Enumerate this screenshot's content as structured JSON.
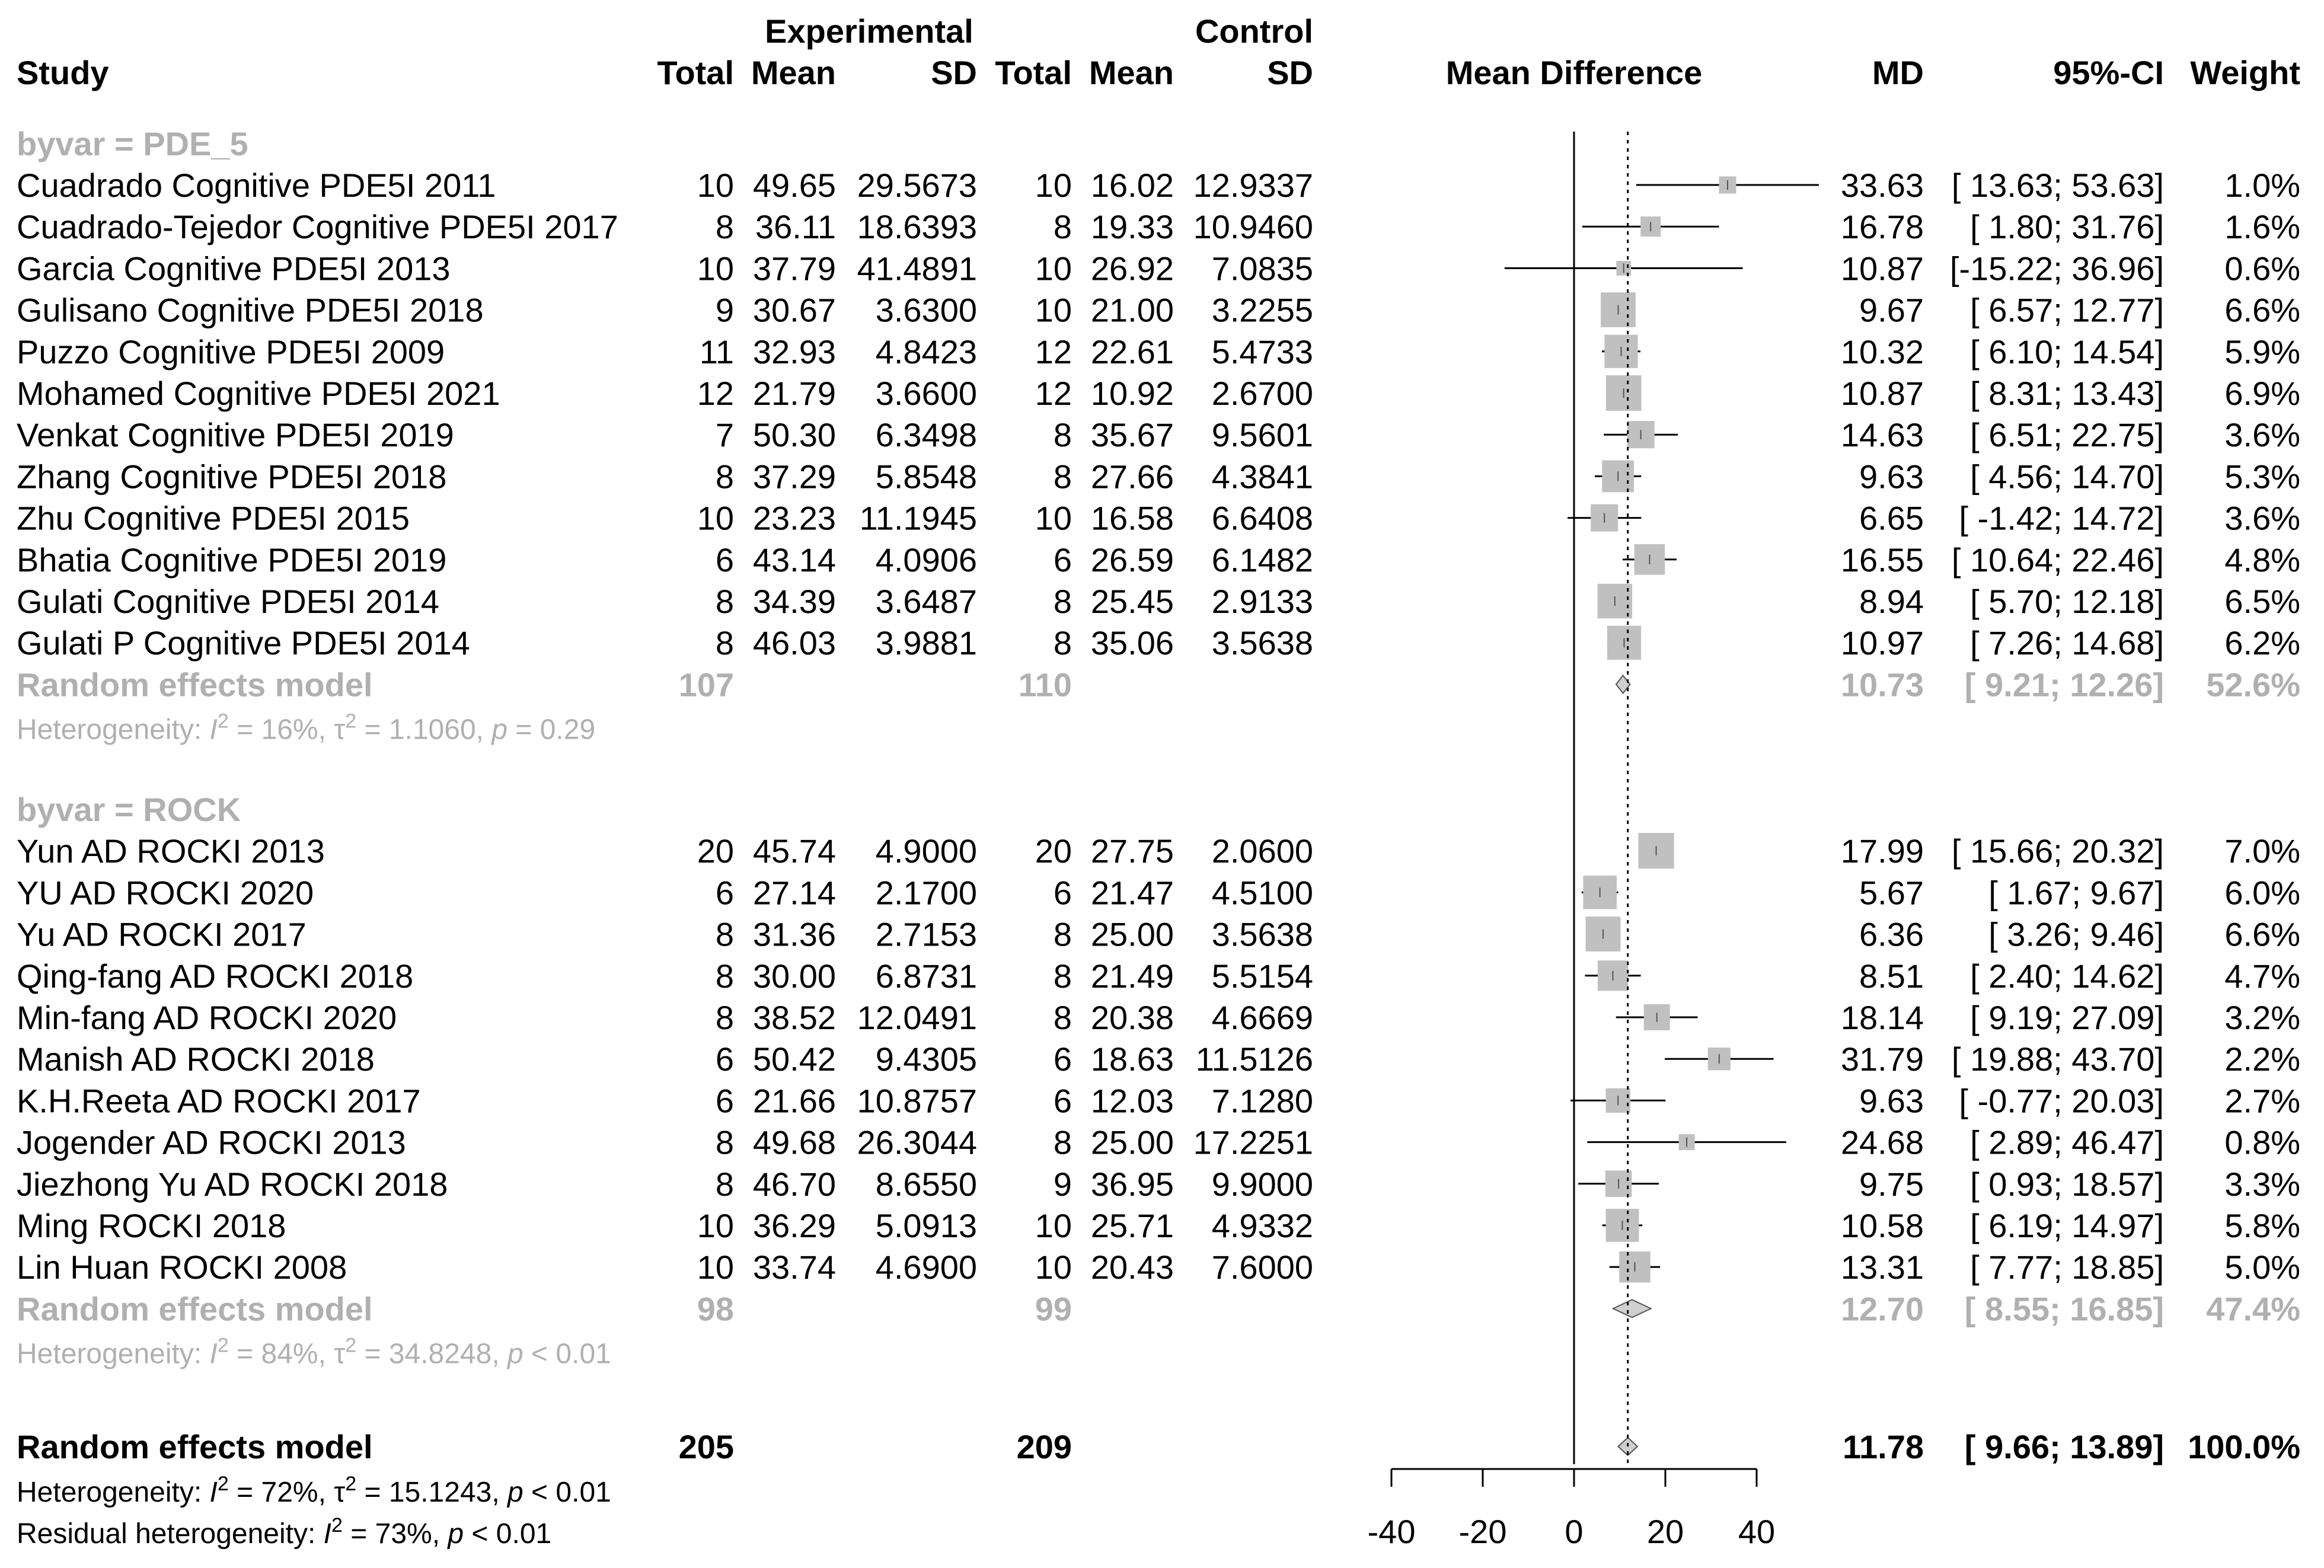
{
  "headers": {
    "experimental": "Experimental",
    "control": "Control",
    "study": "Study",
    "total": "Total",
    "mean": "Mean",
    "sd": "SD",
    "mean_difference": "Mean Difference",
    "md": "MD",
    "ci": "95%-CI",
    "weight": "Weight"
  },
  "footer": {
    "overall_label": "Random effects model",
    "overall_exp_total": "205",
    "overall_ctrl_total": "209",
    "overall_md": "11.78",
    "overall_ci": "[ 9.66; 13.89]",
    "overall_weight": "100.0%",
    "heterogeneity_prefix": "Heterogeneity: ",
    "heterogeneity_rest": " = 72%, τ",
    "heterogeneity_tail": " = 15.1243, ",
    "heterogeneity_p": " < 0.01",
    "residual_prefix": "Residual heterogeneity: ",
    "residual_rest": " = 73%, ",
    "residual_p": " < 0.01"
  },
  "chart_data": {
    "type": "forest",
    "axis": {
      "min": -40,
      "max": 40,
      "ticks": [
        -40,
        -20,
        0,
        20,
        40
      ],
      "xlabel": "Mean Difference",
      "null_line": 0,
      "pooled_line": 11.78
    },
    "groups": [
      {
        "label": "byvar = PDE_5",
        "studies": [
          {
            "study": "Cuadrado Cognitive PDE5I 2011",
            "n_e": "10",
            "mean_e": "49.65",
            "sd_e": "29.5673",
            "n_c": "10",
            "mean_c": "16.02",
            "sd_c": "12.9337",
            "md": 33.63,
            "lower": 13.63,
            "upper": 53.63,
            "md_text": "33.63",
            "ci_text": "[ 13.63; 53.63]",
            "weight_text": "1.0%",
            "weight": 1.0
          },
          {
            "study": "Cuadrado-Tejedor Cognitive PDE5I 2017",
            "n_e": "8",
            "mean_e": "36.11",
            "sd_e": "18.6393",
            "n_c": "8",
            "mean_c": "19.33",
            "sd_c": "10.9460",
            "md": 16.78,
            "lower": 1.8,
            "upper": 31.76,
            "md_text": "16.78",
            "ci_text": "[ 1.80; 31.76]",
            "weight_text": "1.6%",
            "weight": 1.6
          },
          {
            "study": "Garcia Cognitive PDE5I 2013",
            "n_e": "10",
            "mean_e": "37.79",
            "sd_e": "41.4891",
            "n_c": "10",
            "mean_c": "26.92",
            "sd_c": "7.0835",
            "md": 10.87,
            "lower": -15.22,
            "upper": 36.96,
            "md_text": "10.87",
            "ci_text": "[-15.22; 36.96]",
            "weight_text": "0.6%",
            "weight": 0.6
          },
          {
            "study": "Gulisano Cognitive PDE5I 2018",
            "n_e": "9",
            "mean_e": "30.67",
            "sd_e": "3.6300",
            "n_c": "10",
            "mean_c": "21.00",
            "sd_c": "3.2255",
            "md": 9.67,
            "lower": 6.57,
            "upper": 12.77,
            "md_text": "9.67",
            "ci_text": "[ 6.57; 12.77]",
            "weight_text": "6.6%",
            "weight": 6.6
          },
          {
            "study": "Puzzo Cognitive PDE5I 2009",
            "n_e": "11",
            "mean_e": "32.93",
            "sd_e": "4.8423",
            "n_c": "12",
            "mean_c": "22.61",
            "sd_c": "5.4733",
            "md": 10.32,
            "lower": 6.1,
            "upper": 14.54,
            "md_text": "10.32",
            "ci_text": "[ 6.10; 14.54]",
            "weight_text": "5.9%",
            "weight": 5.9
          },
          {
            "study": "Mohamed Cognitive PDE5I 2021",
            "n_e": "12",
            "mean_e": "21.79",
            "sd_e": "3.6600",
            "n_c": "12",
            "mean_c": "10.92",
            "sd_c": "2.6700",
            "md": 10.87,
            "lower": 8.31,
            "upper": 13.43,
            "md_text": "10.87",
            "ci_text": "[ 8.31; 13.43]",
            "weight_text": "6.9%",
            "weight": 6.9
          },
          {
            "study": "Venkat Cognitive PDE5I 2019",
            "n_e": "7",
            "mean_e": "50.30",
            "sd_e": "6.3498",
            "n_c": "8",
            "mean_c": "35.67",
            "sd_c": "9.5601",
            "md": 14.63,
            "lower": 6.51,
            "upper": 22.75,
            "md_text": "14.63",
            "ci_text": "[ 6.51; 22.75]",
            "weight_text": "3.6%",
            "weight": 3.6
          },
          {
            "study": "Zhang Cognitive PDE5I 2018",
            "n_e": "8",
            "mean_e": "37.29",
            "sd_e": "5.8548",
            "n_c": "8",
            "mean_c": "27.66",
            "sd_c": "4.3841",
            "md": 9.63,
            "lower": 4.56,
            "upper": 14.7,
            "md_text": "9.63",
            "ci_text": "[ 4.56; 14.70]",
            "weight_text": "5.3%",
            "weight": 5.3
          },
          {
            "study": "Zhu Cognitive PDE5I 2015",
            "n_e": "10",
            "mean_e": "23.23",
            "sd_e": "11.1945",
            "n_c": "10",
            "mean_c": "16.58",
            "sd_c": "6.6408",
            "md": 6.65,
            "lower": -1.42,
            "upper": 14.72,
            "md_text": "6.65",
            "ci_text": "[ -1.42; 14.72]",
            "weight_text": "3.6%",
            "weight": 3.6
          },
          {
            "study": "Bhatia Cognitive PDE5I 2019",
            "n_e": "6",
            "mean_e": "43.14",
            "sd_e": "4.0906",
            "n_c": "6",
            "mean_c": "26.59",
            "sd_c": "6.1482",
            "md": 16.55,
            "lower": 10.64,
            "upper": 22.46,
            "md_text": "16.55",
            "ci_text": "[ 10.64; 22.46]",
            "weight_text": "4.8%",
            "weight": 4.8
          },
          {
            "study": "Gulati Cognitive PDE5I 2014",
            "n_e": "8",
            "mean_e": "34.39",
            "sd_e": "3.6487",
            "n_c": "8",
            "mean_c": "25.45",
            "sd_c": "2.9133",
            "md": 8.94,
            "lower": 5.7,
            "upper": 12.18,
            "md_text": "8.94",
            "ci_text": "[ 5.70; 12.18]",
            "weight_text": "6.5%",
            "weight": 6.5
          },
          {
            "study": "Gulati P Cognitive PDE5I 2014",
            "n_e": "8",
            "mean_e": "46.03",
            "sd_e": "3.9881",
            "n_c": "8",
            "mean_c": "35.06",
            "sd_c": "3.5638",
            "md": 10.97,
            "lower": 7.26,
            "upper": 14.68,
            "md_text": "10.97",
            "ci_text": "[ 7.26; 14.68]",
            "weight_text": "6.2%",
            "weight": 6.2
          }
        ],
        "pooled": {
          "label": "Random effects model",
          "n_e": "107",
          "n_c": "110",
          "md": 10.73,
          "lower": 9.21,
          "upper": 12.26,
          "md_text": "10.73",
          "ci_text": "[ 9.21; 12.26]",
          "weight_text": "52.6%"
        },
        "heterogeneity": {
          "prefix": "Heterogeneity: ",
          "i2_rest": " = 16%, τ",
          "tau_rest": " = 1.1060, ",
          "p_rest": " = 0.29"
        }
      },
      {
        "label": "byvar = ROCK",
        "studies": [
          {
            "study": "Yun AD ROCKI 2013",
            "n_e": "20",
            "mean_e": "45.74",
            "sd_e": "4.9000",
            "n_c": "20",
            "mean_c": "27.75",
            "sd_c": "2.0600",
            "md": 17.99,
            "lower": 15.66,
            "upper": 20.32,
            "md_text": "17.99",
            "ci_text": "[ 15.66; 20.32]",
            "weight_text": "7.0%",
            "weight": 7.0
          },
          {
            "study": "YU AD ROCKI 2020",
            "n_e": "6",
            "mean_e": "27.14",
            "sd_e": "2.1700",
            "n_c": "6",
            "mean_c": "21.47",
            "sd_c": "4.5100",
            "md": 5.67,
            "lower": 1.67,
            "upper": 9.67,
            "md_text": "5.67",
            "ci_text": "[ 1.67; 9.67]",
            "weight_text": "6.0%",
            "weight": 6.0
          },
          {
            "study": "Yu AD ROCKI 2017",
            "n_e": "8",
            "mean_e": "31.36",
            "sd_e": "2.7153",
            "n_c": "8",
            "mean_c": "25.00",
            "sd_c": "3.5638",
            "md": 6.36,
            "lower": 3.26,
            "upper": 9.46,
            "md_text": "6.36",
            "ci_text": "[ 3.26; 9.46]",
            "weight_text": "6.6%",
            "weight": 6.6
          },
          {
            "study": "Qing-fang AD ROCKI 2018",
            "n_e": "8",
            "mean_e": "30.00",
            "sd_e": "6.8731",
            "n_c": "8",
            "mean_c": "21.49",
            "sd_c": "5.5154",
            "md": 8.51,
            "lower": 2.4,
            "upper": 14.62,
            "md_text": "8.51",
            "ci_text": "[ 2.40; 14.62]",
            "weight_text": "4.7%",
            "weight": 4.7
          },
          {
            "study": "Min-fang AD ROCKI 2020",
            "n_e": "8",
            "mean_e": "38.52",
            "sd_e": "12.0491",
            "n_c": "8",
            "mean_c": "20.38",
            "sd_c": "4.6669",
            "md": 18.14,
            "lower": 9.19,
            "upper": 27.09,
            "md_text": "18.14",
            "ci_text": "[ 9.19; 27.09]",
            "weight_text": "3.2%",
            "weight": 3.2
          },
          {
            "study": "Manish AD ROCKI 2018",
            "n_e": "6",
            "mean_e": "50.42",
            "sd_e": "9.4305",
            "n_c": "6",
            "mean_c": "18.63",
            "sd_c": "11.5126",
            "md": 31.79,
            "lower": 19.88,
            "upper": 43.7,
            "md_text": "31.79",
            "ci_text": "[ 19.88; 43.70]",
            "weight_text": "2.2%",
            "weight": 2.2
          },
          {
            "study": "K.H.Reeta AD ROCKI 2017",
            "n_e": "6",
            "mean_e": "21.66",
            "sd_e": "10.8757",
            "n_c": "6",
            "mean_c": "12.03",
            "sd_c": "7.1280",
            "md": 9.63,
            "lower": -0.77,
            "upper": 20.03,
            "md_text": "9.63",
            "ci_text": "[ -0.77; 20.03]",
            "weight_text": "2.7%",
            "weight": 2.7
          },
          {
            "study": "Jogender AD ROCKI 2013",
            "n_e": "8",
            "mean_e": "49.68",
            "sd_e": "26.3044",
            "n_c": "8",
            "mean_c": "25.00",
            "sd_c": "17.2251",
            "md": 24.68,
            "lower": 2.89,
            "upper": 46.47,
            "md_text": "24.68",
            "ci_text": "[ 2.89; 46.47]",
            "weight_text": "0.8%",
            "weight": 0.8
          },
          {
            "study": "Jiezhong Yu AD ROCKI 2018",
            "n_e": "8",
            "mean_e": "46.70",
            "sd_e": "8.6550",
            "n_c": "9",
            "mean_c": "36.95",
            "sd_c": "9.9000",
            "md": 9.75,
            "lower": 0.93,
            "upper": 18.57,
            "md_text": "9.75",
            "ci_text": "[ 0.93; 18.57]",
            "weight_text": "3.3%",
            "weight": 3.3
          },
          {
            "study": "Ming ROCKI 2018",
            "n_e": "10",
            "mean_e": "36.29",
            "sd_e": "5.0913",
            "n_c": "10",
            "mean_c": "25.71",
            "sd_c": "4.9332",
            "md": 10.58,
            "lower": 6.19,
            "upper": 14.97,
            "md_text": "10.58",
            "ci_text": "[ 6.19; 14.97]",
            "weight_text": "5.8%",
            "weight": 5.8
          },
          {
            "study": "Lin Huan ROCKI 2008",
            "n_e": "10",
            "mean_e": "33.74",
            "sd_e": "4.6900",
            "n_c": "10",
            "mean_c": "20.43",
            "sd_c": "7.6000",
            "md": 13.31,
            "lower": 7.77,
            "upper": 18.85,
            "md_text": "13.31",
            "ci_text": "[ 7.77; 18.85]",
            "weight_text": "5.0%",
            "weight": 5.0
          }
        ],
        "pooled": {
          "label": "Random effects model",
          "n_e": "98",
          "n_c": "99",
          "md": 12.7,
          "lower": 8.55,
          "upper": 16.85,
          "md_text": "12.70",
          "ci_text": "[ 8.55; 16.85]",
          "weight_text": "47.4%"
        },
        "heterogeneity": {
          "prefix": "Heterogeneity: ",
          "i2_rest": " = 84%, τ",
          "tau_rest": " = 34.8248, ",
          "p_rest": " < 0.01"
        }
      }
    ],
    "overall": {
      "md": 11.78,
      "lower": 9.66,
      "upper": 13.89
    }
  },
  "colors": {
    "text": "#000000",
    "subgroup": "#b0b0b0",
    "box": "#c0c0c0"
  }
}
